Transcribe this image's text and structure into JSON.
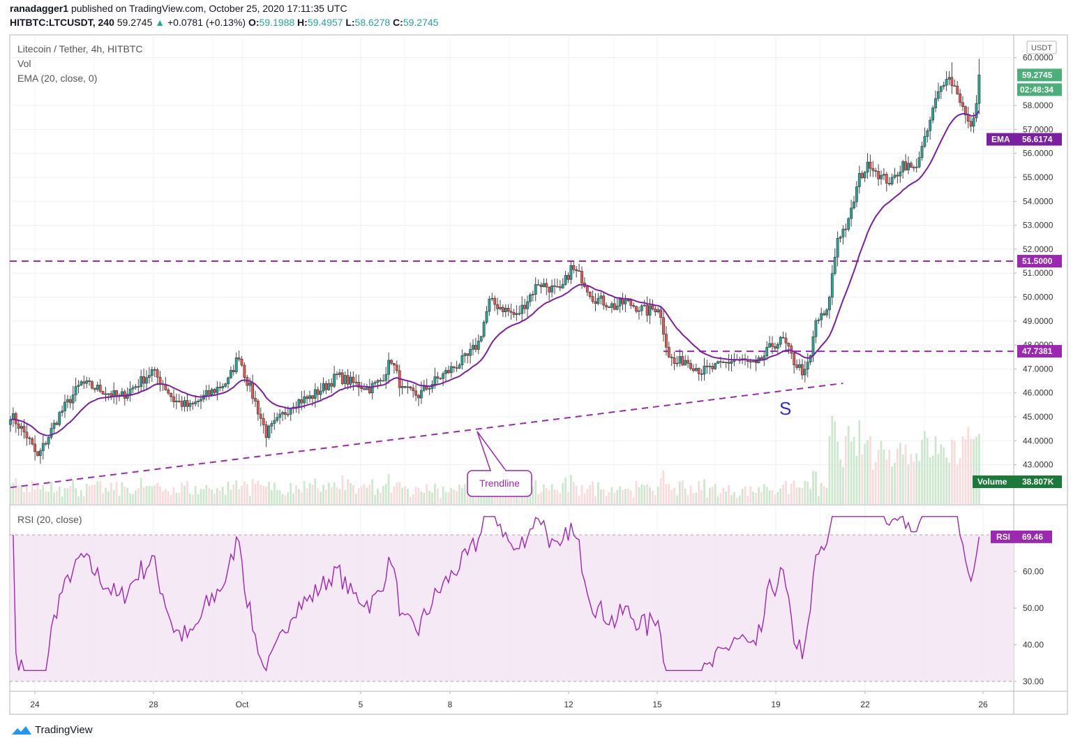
{
  "header": {
    "author": "ranadagger1",
    "published": "published on TradingView.com, October 25, 2020 17:11:35 UTC",
    "symbol": "HITBTC:LTCUSDT, 240",
    "last": "59.2745",
    "change_arrow": "▲",
    "change": "+0.0781 (+0.13%)",
    "o_label": "O:",
    "o": "59.1988",
    "h_label": "H:",
    "h": "59.4957",
    "l_label": "L:",
    "l": "58.6278",
    "c_label": "C:",
    "c": "59.2745"
  },
  "legend": {
    "title": "Litecoin / Tether, 4h, HITBTC",
    "vol": "Vol",
    "ema": "EMA (20, close, 0)",
    "rsi": "RSI (20, close)"
  },
  "footer": {
    "brand": "TradingView",
    "logo_icon": "tradingview-logo-icon"
  },
  "colors": {
    "up": "#26a69a",
    "down": "#ef5350",
    "ema": "#7b1fa2",
    "rsi": "#9c27b0",
    "level": "#9c27b0"
  },
  "chart_data": [
    {
      "type": "candlestick",
      "title": "Litecoin / Tether, 4h, HITBTC",
      "currency": "USDT",
      "x_ticks": [
        "24",
        "28",
        "Oct",
        "5",
        "8",
        "12",
        "15",
        "19",
        "22",
        "26"
      ],
      "y_ticks": [
        "60.0000",
        "58.0000",
        "57.0000",
        "56.0000",
        "55.0000",
        "54.0000",
        "53.0000",
        "52.0000",
        "51.0000",
        "50.0000",
        "49.0000",
        "48.0000",
        "47.0000",
        "46.0000",
        "45.0000",
        "44.0000",
        "43.0000"
      ],
      "ylim": [
        42,
        61.2
      ],
      "price_path": [
        [
          0,
          45.1
        ],
        [
          6,
          44.2
        ],
        [
          10,
          43.3
        ],
        [
          18,
          45.1
        ],
        [
          26,
          46.4
        ],
        [
          34,
          46.1
        ],
        [
          40,
          45.8
        ],
        [
          46,
          46.3
        ],
        [
          52,
          46.9
        ],
        [
          56,
          46.4
        ],
        [
          60,
          45.7
        ],
        [
          66,
          45.4
        ],
        [
          72,
          45.9
        ],
        [
          80,
          46.5
        ],
        [
          84,
          47.6
        ],
        [
          86,
          46.8
        ],
        [
          90,
          45.6
        ],
        [
          94,
          44.3
        ],
        [
          98,
          44.8
        ],
        [
          104,
          45.6
        ],
        [
          110,
          45.8
        ],
        [
          116,
          46.3
        ],
        [
          120,
          46.7
        ],
        [
          126,
          46.4
        ],
        [
          132,
          46.2
        ],
        [
          136,
          46.5
        ],
        [
          140,
          47.4
        ],
        [
          144,
          46.1
        ],
        [
          150,
          45.9
        ],
        [
          156,
          46.5
        ],
        [
          162,
          47.0
        ],
        [
          168,
          47.5
        ],
        [
          172,
          48.1
        ],
        [
          176,
          49.8
        ],
        [
          180,
          49.6
        ],
        [
          186,
          49.2
        ],
        [
          190,
          49.9
        ],
        [
          194,
          50.6
        ],
        [
          198,
          50.4
        ],
        [
          202,
          50.2
        ],
        [
          206,
          51.2
        ],
        [
          210,
          50.8
        ],
        [
          214,
          50.0
        ],
        [
          218,
          49.8
        ],
        [
          222,
          49.6
        ],
        [
          226,
          49.8
        ],
        [
          230,
          49.6
        ],
        [
          234,
          49.4
        ],
        [
          238,
          49.6
        ],
        [
          242,
          47.6
        ],
        [
          244,
          47.2
        ],
        [
          248,
          47.4
        ],
        [
          254,
          46.9
        ],
        [
          260,
          47.1
        ],
        [
          266,
          47.4
        ],
        [
          270,
          47.3
        ],
        [
          274,
          47.1
        ],
        [
          280,
          48.0
        ],
        [
          284,
          48.2
        ],
        [
          288,
          47.3
        ],
        [
          292,
          46.8
        ],
        [
          294,
          47.5
        ],
        [
          296,
          49.0
        ],
        [
          300,
          49.3
        ],
        [
          304,
          52.5
        ],
        [
          308,
          53.1
        ],
        [
          312,
          55.0
        ],
        [
          316,
          55.6
        ],
        [
          320,
          55.0
        ],
        [
          324,
          54.8
        ],
        [
          328,
          55.6
        ],
        [
          332,
          55.3
        ],
        [
          336,
          56.5
        ],
        [
          340,
          58.2
        ],
        [
          344,
          59.3
        ],
        [
          348,
          58.6
        ],
        [
          352,
          57.2
        ],
        [
          354,
          57.3
        ],
        [
          356,
          59.27
        ]
      ],
      "highs": [
        {
          "at": 207,
          "value": 51.5
        },
        {
          "at": 346,
          "value": 59.8
        },
        {
          "at": 356,
          "value": 59.95
        }
      ],
      "ema": {
        "name": "EMA",
        "last_value": "56.6174"
      },
      "horizontal_levels": [
        "51.5000",
        "47.7381"
      ],
      "last_price_label": "59.2745",
      "countdown": "02:48:34",
      "volume": {
        "name": "Volume",
        "last_value": "38.807K"
      },
      "trendline": {
        "from": [
          0,
          42.05
        ],
        "to": [
          306,
          46.4
        ]
      },
      "annotations": [
        "Trendline",
        "S"
      ]
    },
    {
      "type": "line",
      "title": "RSI (20, close)",
      "y_ticks": [
        "60.00",
        "50.00",
        "40.00",
        "30.00"
      ],
      "upper_band": 70,
      "lower_band": 30,
      "ylim": [
        27.3,
        75.8
      ],
      "last_value": "69.46",
      "label": "RSI"
    }
  ]
}
